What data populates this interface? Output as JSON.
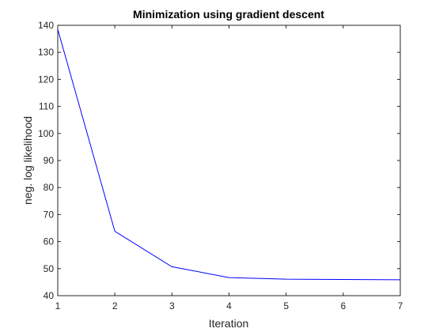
{
  "chart_data": {
    "type": "line",
    "title": "Minimization using gradient descent",
    "xlabel": "Iteration",
    "ylabel": "neg. log likelihood",
    "x": [
      1,
      2,
      3,
      4,
      5,
      6,
      7
    ],
    "series": [
      {
        "values": [
          138.5,
          63.8,
          50.7,
          46.7,
          46.1,
          46.0,
          45.9
        ],
        "color": "#0000ff"
      }
    ],
    "xlim": [
      1,
      7
    ],
    "ylim": [
      40,
      140
    ],
    "xticks": [
      1,
      2,
      3,
      4,
      5,
      6,
      7
    ],
    "yticks": [
      40,
      50,
      60,
      70,
      80,
      90,
      100,
      110,
      120,
      130,
      140
    ],
    "grid": false,
    "legend": "none",
    "axis_color": "#262626",
    "background": "#ffffff"
  }
}
